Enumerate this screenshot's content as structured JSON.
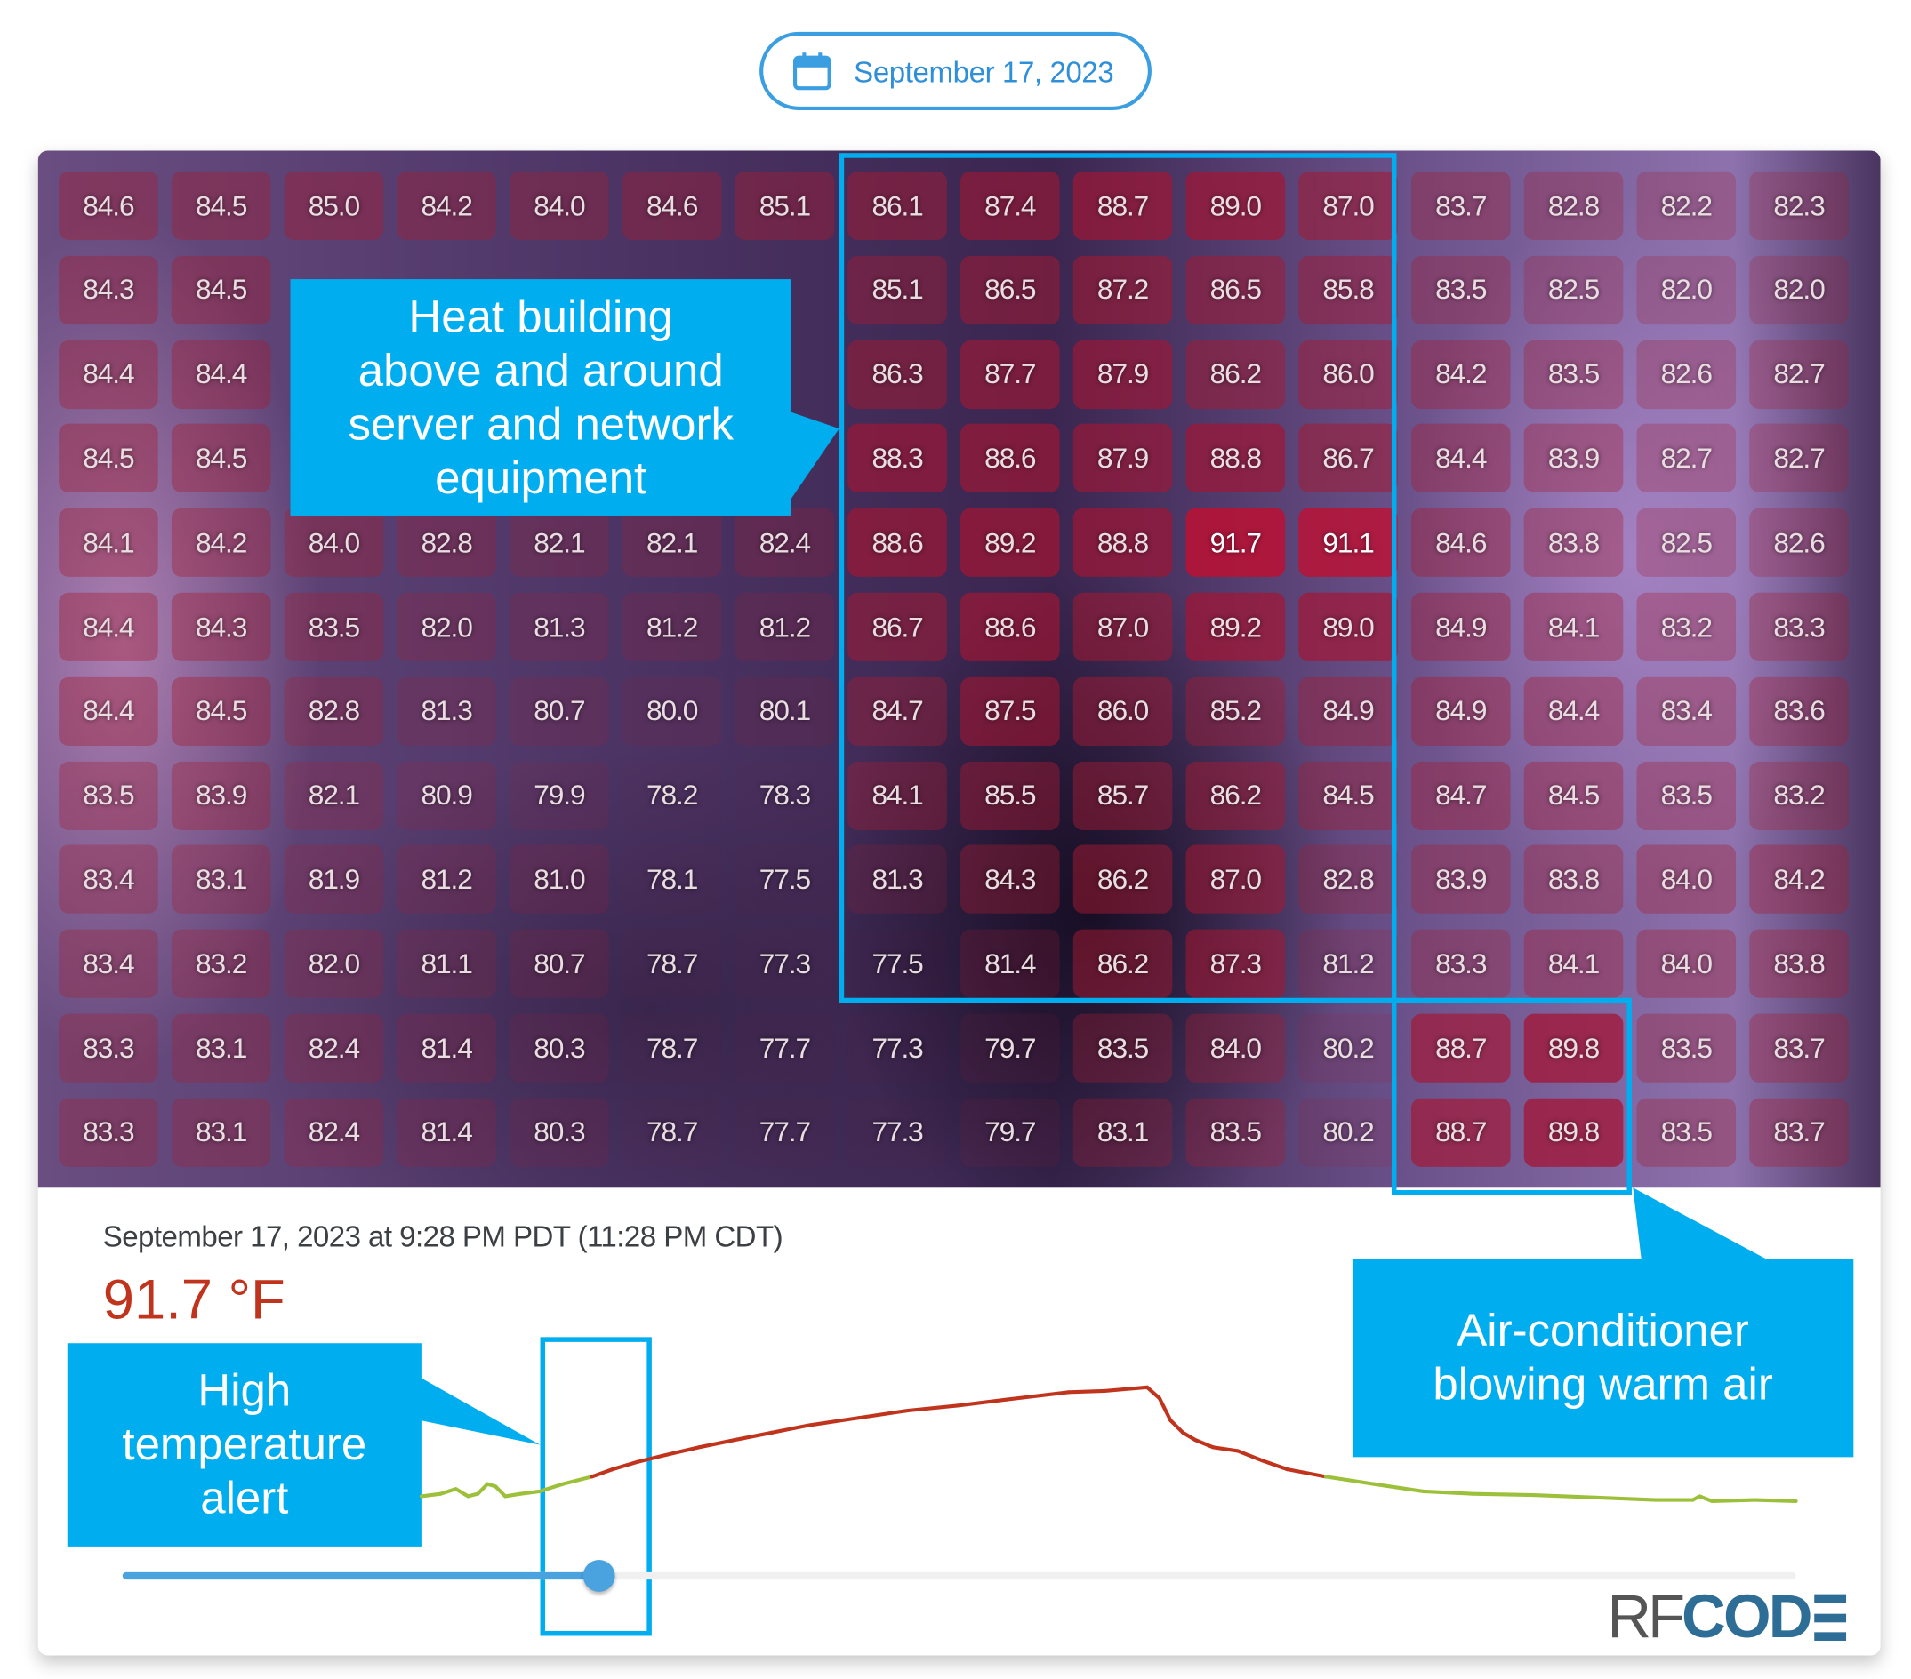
{
  "header": {
    "date_label": "September 17, 2023",
    "icon": "calendar-icon"
  },
  "colors": {
    "accent": "#00aeef",
    "alert_red": "#c0341d",
    "normal_green": "#9dc03a",
    "slider": "#4aa3df",
    "logo": "#2e6e96"
  },
  "grid": {
    "unit": "°F",
    "rows": [
      [
        "84.6",
        "84.5",
        "85.0",
        "84.2",
        "84.0",
        "84.6",
        "85.1",
        "86.1",
        "87.4",
        "88.7",
        "89.0",
        "87.0",
        "83.7",
        "82.8",
        "82.2",
        "82.3"
      ],
      [
        "84.3",
        "84.5",
        null,
        null,
        null,
        null,
        null,
        "85.1",
        "86.5",
        "87.2",
        "86.5",
        "85.8",
        "83.5",
        "82.5",
        "82.0",
        "82.0"
      ],
      [
        "84.4",
        "84.4",
        null,
        null,
        null,
        null,
        null,
        "86.3",
        "87.7",
        "87.9",
        "86.2",
        "86.0",
        "84.2",
        "83.5",
        "82.6",
        "82.7"
      ],
      [
        "84.5",
        "84.5",
        null,
        null,
        null,
        null,
        null,
        "88.3",
        "88.6",
        "87.9",
        "88.8",
        "86.7",
        "84.4",
        "83.9",
        "82.7",
        "82.7"
      ],
      [
        "84.1",
        "84.2",
        "84.0",
        "82.8",
        "82.1",
        "82.1",
        "82.4",
        "88.6",
        "89.2",
        "88.8",
        "91.7",
        "91.1",
        "84.6",
        "83.8",
        "82.5",
        "82.6"
      ],
      [
        "84.4",
        "84.3",
        "83.5",
        "82.0",
        "81.3",
        "81.2",
        "81.2",
        "86.7",
        "88.6",
        "87.0",
        "89.2",
        "89.0",
        "84.9",
        "84.1",
        "83.2",
        "83.3"
      ],
      [
        "84.4",
        "84.5",
        "82.8",
        "81.3",
        "80.7",
        "80.0",
        "80.1",
        "84.7",
        "87.5",
        "86.0",
        "85.2",
        "84.9",
        "84.9",
        "84.4",
        "83.4",
        "83.6"
      ],
      [
        "83.5",
        "83.9",
        "82.1",
        "80.9",
        "79.9",
        "78.2",
        "78.3",
        "84.1",
        "85.5",
        "85.7",
        "86.2",
        "84.5",
        "84.7",
        "84.5",
        "83.5",
        "83.2"
      ],
      [
        "83.4",
        "83.1",
        "81.9",
        "81.2",
        "81.0",
        "78.1",
        "77.5",
        "81.3",
        "84.3",
        "86.2",
        "87.0",
        "82.8",
        "83.9",
        "83.8",
        "84.0",
        "84.2"
      ],
      [
        "83.4",
        "83.2",
        "82.0",
        "81.1",
        "80.7",
        "78.7",
        "77.3",
        "77.5",
        "81.4",
        "86.2",
        "87.3",
        "81.2",
        "83.3",
        "84.1",
        "84.0",
        "83.8"
      ],
      [
        "83.3",
        "83.1",
        "82.4",
        "81.4",
        "80.3",
        "78.7",
        "77.7",
        "77.3",
        "79.7",
        "83.5",
        "84.0",
        "80.2",
        "88.7",
        "89.8",
        "83.5",
        "83.7"
      ],
      [
        "83.3",
        "83.1",
        "82.4",
        "81.4",
        "80.3",
        "78.7",
        "77.7",
        "77.3",
        "79.7",
        "83.1",
        "83.5",
        "80.2",
        "88.7",
        "89.8",
        "83.5",
        "83.7"
      ]
    ]
  },
  "callouts": {
    "heat": [
      "Heat building",
      "above and around",
      "server and network",
      "equipment"
    ],
    "ac": [
      "Air-conditioner",
      "blowing warm air"
    ],
    "alert": [
      "High",
      "temperature",
      "alert"
    ]
  },
  "reading": {
    "timestamp": "September 17, 2023 at 9:28 PM PDT (11:28 PM CDT)",
    "value": "91.7 °F"
  },
  "chart_data": {
    "type": "line",
    "title": "",
    "xlabel": "",
    "ylabel": "°F",
    "alert_threshold": 84,
    "points": [
      [
        0,
        80.6
      ],
      [
        1.4,
        81
      ],
      [
        2.5,
        81.8
      ],
      [
        3.4,
        80.6
      ],
      [
        4.1,
        81
      ],
      [
        4.8,
        82.6
      ],
      [
        5.4,
        82.2
      ],
      [
        6.1,
        80.6
      ],
      [
        7.2,
        81
      ],
      [
        8.6,
        81.4
      ],
      [
        10.3,
        82.6
      ],
      [
        12.4,
        83.8
      ],
      [
        13.9,
        85
      ],
      [
        15.7,
        86.2
      ],
      [
        17.5,
        87.2
      ],
      [
        20.2,
        88.6
      ],
      [
        22.8,
        89.8
      ],
      [
        25.5,
        91
      ],
      [
        28.2,
        92.2
      ],
      [
        31.8,
        93.4
      ],
      [
        35.4,
        94.6
      ],
      [
        39,
        95.4
      ],
      [
        42.6,
        96.4
      ],
      [
        47.1,
        97.6
      ],
      [
        49.7,
        97.8
      ],
      [
        52.8,
        98.4
      ],
      [
        53.7,
        96.6
      ],
      [
        54.5,
        93
      ],
      [
        55.4,
        91
      ],
      [
        56.3,
        89.8
      ],
      [
        57.6,
        88.6
      ],
      [
        59.4,
        88
      ],
      [
        61.2,
        86.4
      ],
      [
        63,
        85
      ],
      [
        65.8,
        83.8
      ],
      [
        69.3,
        82.6
      ],
      [
        72.9,
        81.4
      ],
      [
        76.5,
        81
      ],
      [
        80.9,
        80.8
      ],
      [
        85.4,
        80.4
      ],
      [
        89.8,
        80
      ],
      [
        92.5,
        80
      ],
      [
        93,
        80.6
      ],
      [
        93.9,
        79.8
      ],
      [
        97,
        80
      ],
      [
        100,
        79.8
      ]
    ]
  },
  "slider": {
    "position_fraction": 0.285
  },
  "logo": {
    "part1": "RF",
    "part2": "COD",
    "full": "RFCODE"
  }
}
